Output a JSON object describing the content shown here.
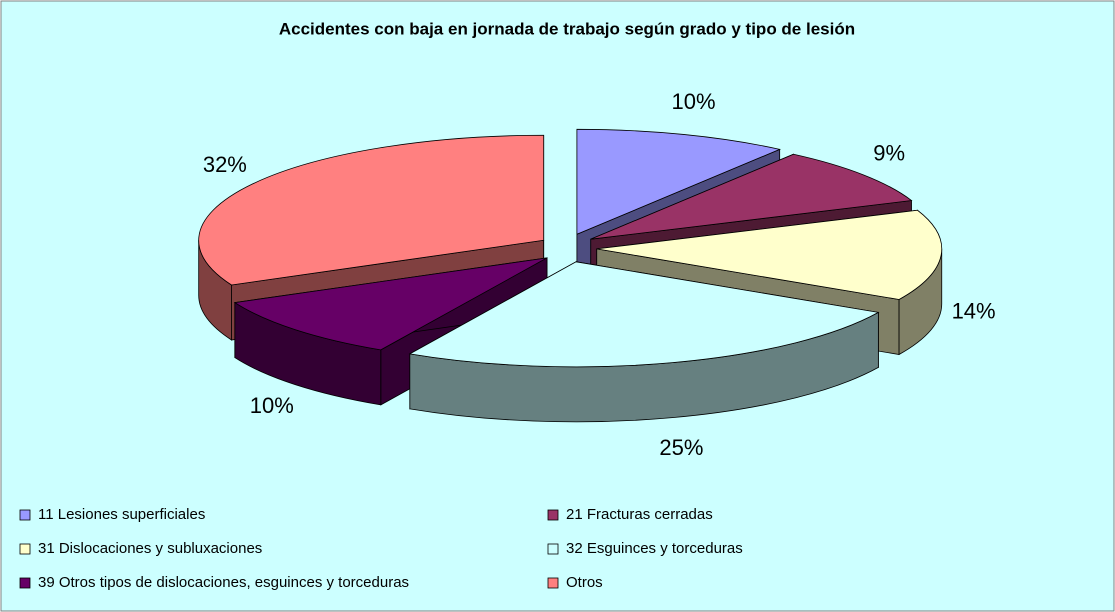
{
  "chart_data": {
    "type": "pie",
    "title": "Accidentes con baja en jornada de trabajo según grado y tipo de lesión",
    "categories": [
      "11 Lesiones superficiales",
      "21 Fracturas cerradas",
      "31 Dislocaciones y subluxaciones",
      "32 Esguinces y torceduras",
      "39 Otros tipos de dislocaciones, esguinces y torceduras",
      "Otros"
    ],
    "values": [
      10,
      9,
      14,
      25,
      10,
      32
    ],
    "value_labels": [
      "10%",
      "9%",
      "14%",
      "25%",
      "10%",
      "32%"
    ],
    "colors": [
      "#9999ff",
      "#993366",
      "#ffffcc",
      "#ccffff",
      "#660066",
      "#ff8080"
    ],
    "legend": "bottom"
  }
}
